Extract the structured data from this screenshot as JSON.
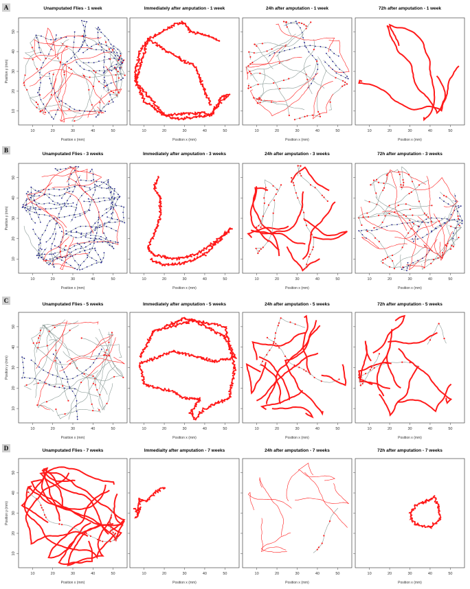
{
  "rows": [
    {
      "label": "A",
      "panels": [
        "Unamputated Flies - 1 week",
        "Immediately after amputation - 1 week",
        "24h after amputation - 1 week",
        "72h after amputation - 1 week"
      ]
    },
    {
      "label": "B",
      "panels": [
        "Unamputated Flies - 3 weeks",
        "Immediately after amputation - 3 weeks",
        "24h after amputation - 3 weeks",
        "72h after amputation - 3 weeks"
      ]
    },
    {
      "label": "C",
      "panels": [
        "Unamputated Flies - 5 weeks",
        "Immediately after amputation - 5 weeks",
        "24h after amputation - 5 weeks",
        "72h after amputation - 5 weeks"
      ]
    },
    {
      "label": "D",
      "panels": [
        "Unamputated Flies - 7 weeks",
        "Immedialty after amputation - 7 weeks",
        "24h after amputation - 7 weeks",
        "72h after amputation - 7 weeks"
      ]
    }
  ],
  "chart_data": {
    "type": "scatter",
    "xlabel": "Position x (mm)",
    "ylabel": "Position y (mm)",
    "xlim": [
      3,
      57
    ],
    "ylim": [
      3,
      57
    ],
    "xticks": [
      10,
      20,
      30,
      40,
      50
    ],
    "yticks": [
      10,
      20,
      30,
      40,
      50
    ],
    "arena": {
      "center": [
        30,
        30
      ],
      "radius_mm": 25
    },
    "colors": {
      "track": "#8a9a96",
      "slow": "#ff1a1a",
      "fast": "#1a1a8c"
    },
    "panels": [
      {
        "density": 40,
        "red": 0.35,
        "blue": 0.12,
        "thick": false
      },
      {
        "waypoints": [
          [
            47,
            45
          ],
          [
            45,
            47
          ],
          [
            33,
            50
          ],
          [
            29,
            55
          ],
          [
            24,
            53
          ],
          [
            12,
            46
          ],
          [
            8,
            40
          ],
          [
            6,
            30
          ],
          [
            6,
            25
          ],
          [
            10,
            15
          ],
          [
            20,
            8
          ],
          [
            27,
            6
          ],
          [
            43,
            8
          ],
          [
            48,
            17
          ],
          [
            52,
            18
          ],
          [
            48,
            15
          ],
          [
            43,
            8
          ],
          [
            40,
            9
          ],
          [
            20,
            8
          ],
          [
            6,
            25
          ],
          [
            12,
            46
          ],
          [
            30,
            35
          ],
          [
            35,
            33
          ],
          [
            43,
            13
          ]
        ]
      },
      {
        "density": 25,
        "red": 0.15,
        "blue": 0.04,
        "thick": false,
        "rimRed": true
      },
      {
        "density": 3,
        "red": 1.0,
        "blue": 0.0,
        "thick": true,
        "rim": true
      },
      {
        "density": 40,
        "red": 0.3,
        "blue": 0.3,
        "thick": false
      },
      {
        "waypoints": [
          [
            17,
            50
          ],
          [
            15,
            45
          ],
          [
            18,
            40
          ],
          [
            18,
            30
          ],
          [
            15,
            22
          ],
          [
            12,
            15
          ],
          [
            15,
            12
          ],
          [
            25,
            10
          ],
          [
            35,
            12
          ],
          [
            45,
            18
          ],
          [
            53,
            25
          ],
          [
            50,
            22
          ],
          [
            40,
            12
          ],
          [
            30,
            8
          ],
          [
            20,
            7
          ],
          [
            13,
            10
          ]
        ]
      },
      {
        "density": 14,
        "red": 0.7,
        "blue": 0.04,
        "thick": true
      },
      {
        "density": 35,
        "red": 0.45,
        "blue": 0.08,
        "thick": false
      },
      {
        "density": 30,
        "red": 0.25,
        "blue": 0.03,
        "thick": false
      },
      {
        "waypoints": [
          [
            20,
            50
          ],
          [
            30,
            54
          ],
          [
            40,
            52
          ],
          [
            50,
            50
          ],
          [
            55,
            30
          ],
          [
            52,
            15
          ],
          [
            40,
            10
          ],
          [
            35,
            5
          ],
          [
            33,
            8
          ],
          [
            38,
            15
          ],
          [
            30,
            15
          ],
          [
            25,
            18
          ],
          [
            10,
            22
          ],
          [
            8,
            32
          ],
          [
            25,
            38
          ],
          [
            45,
            33
          ],
          [
            55,
            35
          ],
          [
            50,
            45
          ],
          [
            35,
            53
          ],
          [
            15,
            48
          ],
          [
            8,
            35
          ]
        ]
      },
      {
        "density": 14,
        "red": 0.95,
        "blue": 0.02,
        "thick": true
      },
      {
        "density": 12,
        "red": 0.8,
        "blue": 0.05,
        "thick": true
      },
      {
        "density": 12,
        "red": 0.85,
        "blue": 0.01,
        "thick": true,
        "rim": true
      },
      {
        "waypoints": [
          [
            5,
            32
          ],
          [
            7,
            30
          ],
          [
            6,
            28
          ],
          [
            8,
            33
          ],
          [
            7,
            31
          ],
          [
            8,
            37
          ],
          [
            12,
            36
          ],
          [
            15,
            40
          ],
          [
            19,
            42
          ],
          [
            21,
            43
          ]
        ]
      },
      {
        "density": 9,
        "red": 0.55,
        "blue": 0.05,
        "thick": false
      },
      {
        "waypoints": [
          [
            33,
            34
          ],
          [
            30,
            30
          ],
          [
            32,
            25
          ],
          [
            40,
            23
          ],
          [
            45,
            27
          ],
          [
            44,
            33
          ],
          [
            42,
            38
          ],
          [
            38,
            36
          ],
          [
            33,
            34
          ]
        ]
      }
    ]
  }
}
